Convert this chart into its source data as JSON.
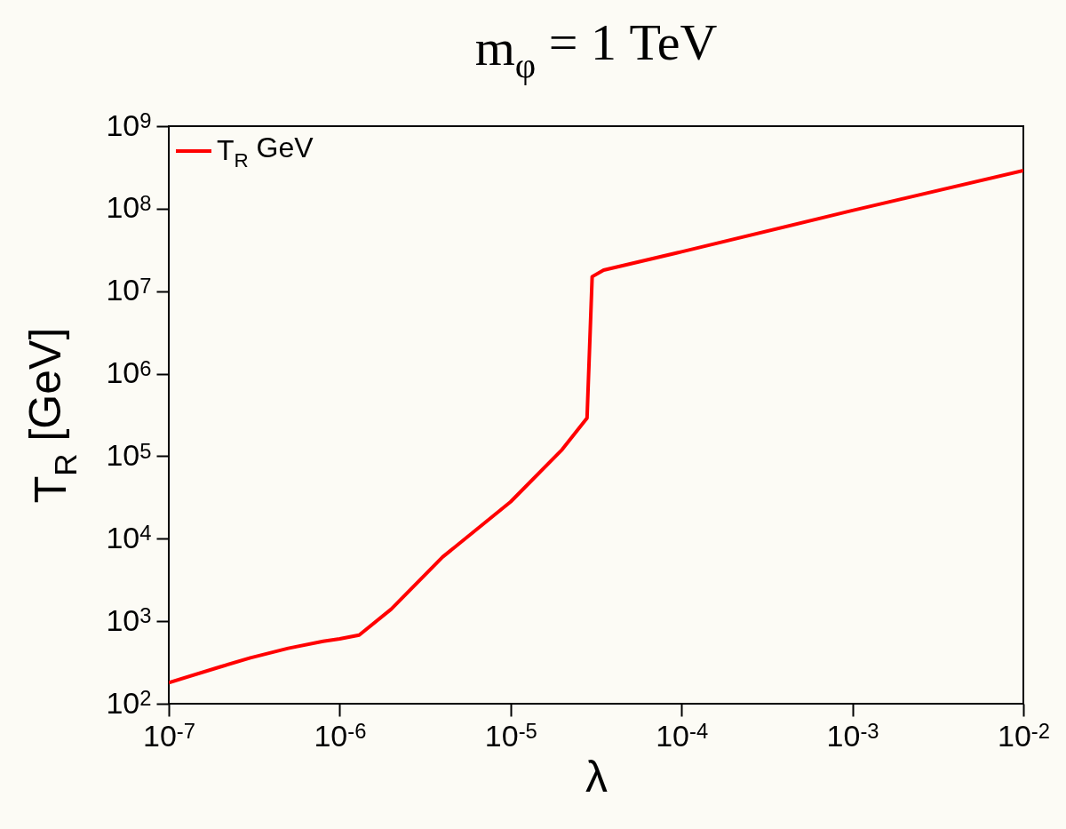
{
  "chart_data": {
    "type": "line",
    "title": "m$_{φ}$ = 1 TeV",
    "xlabel": "λ",
    "ylabel": "T$_{R}$ [GeV]",
    "log": "xy",
    "legend": "top left",
    "grid": false,
    "x": [
      1e-07,
      2e-07,
      3e-07,
      5e-07,
      8e-07,
      1e-06,
      1.3e-06,
      2e-06,
      4e-06,
      1e-05,
      2e-05,
      2.8e-05,
      3e-05,
      3.5e-05,
      0.0001,
      0.001,
      0.01
    ],
    "series": [
      {
        "name": "T$_{R}$ GeV",
        "color": "#ff0000",
        "values": [
          180,
          280,
          360,
          470,
          570,
          610,
          680,
          1400,
          6000,
          28000,
          120000,
          290000,
          15000000,
          18000000,
          30000000,
          95000000,
          290000000
        ]
      }
    ],
    "xlim": [
      1e-07,
      0.01
    ],
    "ylim": [
      100,
      1000000000.0
    ],
    "xticks": [
      {
        "value": 1e-07,
        "label": "10$^{-7}$"
      },
      {
        "value": 1e-06,
        "label": "10$^{-6}$"
      },
      {
        "value": 1e-05,
        "label": "10$^{-5}$"
      },
      {
        "value": 0.0001,
        "label": "10$^{-4}$"
      },
      {
        "value": 0.001,
        "label": "10$^{-3}$"
      },
      {
        "value": 0.01,
        "label": "10$^{-2}$"
      }
    ],
    "yticks": [
      {
        "value": 100,
        "label": "10$^{2}$"
      },
      {
        "value": 1000,
        "label": "10$^{3}$"
      },
      {
        "value": 10000,
        "label": "10$^{4}$"
      },
      {
        "value": 100000,
        "label": "10$^{5}$"
      },
      {
        "value": 1000000,
        "label": "10$^{6}$"
      },
      {
        "value": 10000000,
        "label": "10$^{7}$"
      },
      {
        "value": 100000000,
        "label": "10$^{8}$"
      },
      {
        "value": 1000000000,
        "label": "10$^{9}$"
      }
    ]
  }
}
